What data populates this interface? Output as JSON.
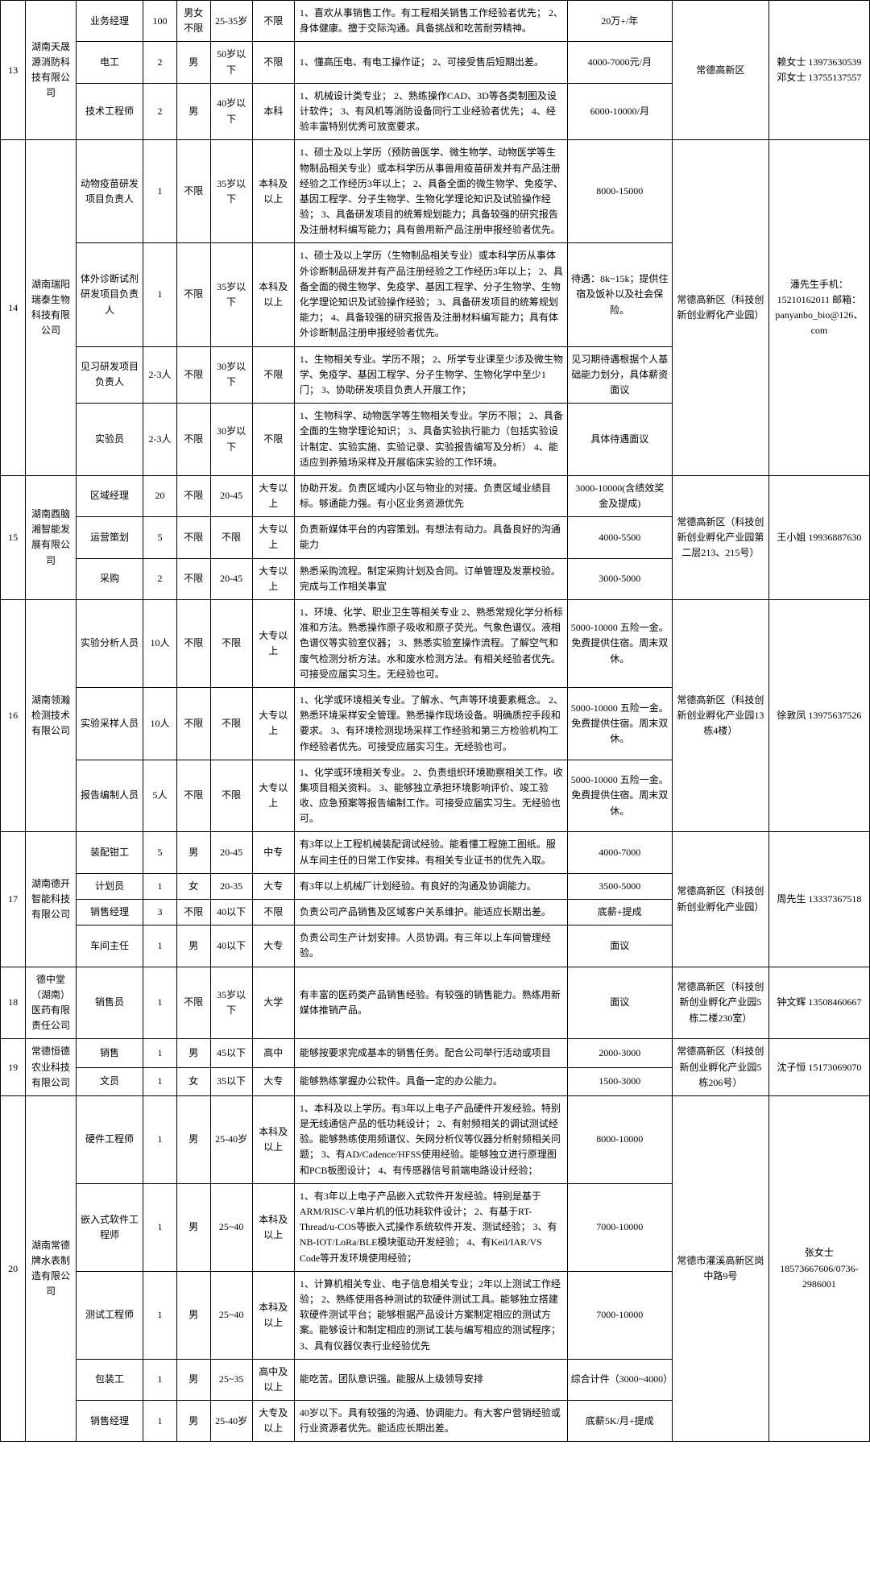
{
  "rows": [
    {
      "i": "13",
      "i_rs": 3,
      "co": "湖南天晟源消防科技有限公司",
      "co_rs": 3,
      "pos": "业务经理",
      "num": "100",
      "sex": "男女不限",
      "age": "25-35岁",
      "edu": "不限",
      "req": "1、喜欢从事销售工作。有工程相关销售工作经验者优先；\n2、身体健康。擅于交际沟通。具备挑战和吃苦耐劳精神。",
      "sal": "20万+/年",
      "loc": "常德高新区",
      "loc_rs": 3,
      "ct": "赖女士\n13973630539\n邓女士\n13755137557",
      "ct_rs": 3
    },
    {
      "pos": "电工",
      "num": "2",
      "sex": "男",
      "age": "50岁以下",
      "edu": "不限",
      "req": "1、懂高压电、有电工操作证；\n2、可接受售后短期出差。",
      "sal": "4000-7000元/月"
    },
    {
      "pos": "技术工程师",
      "num": "2",
      "sex": "男",
      "age": "40岁以下",
      "edu": "本科",
      "req": "1、机械设计类专业；\n2、熟练操作CAD、3D等各类制图及设计软件；\n3、有风机等消防设备同行工业经验者优先；\n4、经验丰富特别优秀可放宽要求。",
      "sal": "6000-10000/月"
    },
    {
      "i": "14",
      "i_rs": 4,
      "co": "湖南瑞阳瑞泰生物科技有限公司",
      "co_rs": 4,
      "pos": "动物疫苗研发项目负责人",
      "num": "1",
      "sex": "不限",
      "age": "35岁以下",
      "edu": "本科及以上",
      "req": "1、硕士及以上学历（预防兽医学、微生物学、动物医学等生物制品相关专业）或本科学历从事兽用疫苗研发并有产品注册经验之工作经历3年以上；\n2、具备全面的微生物学、免疫学、基因工程学、分子生物学、生物化学理论知识及试验操作经验；\n3、具备研发项目的统筹规划能力；具备较强的研究报告及注册材料编写能力；具有兽用新产品注册申报经验者优先。",
      "sal": "8000-15000",
      "loc": "常德高新区（科技创新创业孵化产业园）",
      "loc_rs": 4,
      "ct": "潘先生手机：15210162011\n邮箱：panyanbo_bio@126、com",
      "ct_rs": 4
    },
    {
      "pos": "体外诊断试剂研发项目负责人",
      "num": "1",
      "sex": "不限",
      "age": "35岁以下",
      "edu": "本科及以上",
      "req": "1、硕士及以上学历（生物制品相关专业）或本科学历从事体外诊断制品研发并有产品注册经验之工作经历3年以上；\n2、具备全面的微生物学、免疫学、基因工程学、分子生物学、生物化学理论知识及试验操作经验；\n3、具备研发项目的统筹规划能力；\n4、具备较强的研究报告及注册材料编写能力；具有体外诊断制品注册申报经验者优先。",
      "sal": "待遇：8k~15k；提供住宿及饭补以及社会保险。"
    },
    {
      "pos": "见习研发项目负责人",
      "num": "2-3人",
      "sex": "不限",
      "age": "30岁以下",
      "edu": "不限",
      "req": "1、生物相关专业。学历不限；\n2、所学专业课至少涉及微生物学、免疫学、基因工程学、分子生物学、生物化学中至少1门；\n3、协助研发项目负责人开展工作；",
      "sal": "见习期待遇根据个人基础能力划分，具体薪资面议"
    },
    {
      "pos": "实验员",
      "num": "2-3人",
      "sex": "不限",
      "age": "30岁以下",
      "edu": "不限",
      "req": "1、生物科学、动物医学等生物相关专业。学历不限；\n2、具备全面的生物学理论知识；\n3、具备实验执行能力（包括实验设计制定、实验实施、实验记录、实验报告编写及分析）\n4、能适应到养殖场采样及开展临床实验的工作环境。",
      "sal": "具体待遇面议"
    },
    {
      "i": "15",
      "i_rs": 3,
      "co": "湖南酉脑湘智能发展有限公司",
      "co_rs": 3,
      "pos": "区域经理",
      "num": "20",
      "sex": "不限",
      "age": "20-45",
      "edu": "大专以上",
      "req": "协助开发。负责区域内小区与物业的对接。负责区域业绩目标。够通能力强。有小区业务资源优先",
      "sal": "3000-10000(含绩效奖金及提成)",
      "loc": "常德高新区（科技创新创业孵化产业园第二层213、215号）",
      "loc_rs": 3,
      "ct": "王小姐\n19936887630",
      "ct_rs": 3
    },
    {
      "pos": "运营策划",
      "num": "5",
      "sex": "不限",
      "age": "不限",
      "edu": "大专以上",
      "req": "负责新媒体平台的内容策划。有想法有动力。具备良好的沟通能力",
      "sal": "4000-5500"
    },
    {
      "pos": "采购",
      "num": "2",
      "sex": "不限",
      "age": "20-45",
      "edu": "大专以上",
      "req": "熟悉采购流程。制定采购计划及合同。订单管理及发票校验。完成与工作相关事宜",
      "sal": "3000-5000"
    },
    {
      "i": "16",
      "i_rs": 3,
      "co": "湖南领瀚检测技术有限公司",
      "co_rs": 3,
      "pos": "实验分析人员",
      "num": "10人",
      "sex": "不限",
      "age": "不限",
      "edu": "大专以上",
      "req": "1、环境、化学、职业卫生等相关专业\n2、熟悉常规化学分析标准和方法。熟悉操作原子吸收和原子荧光。气象色谱仪。液相色谱仪等实验室仪器；\n3、熟悉实验室操作流程。了解空气和废气检测分析方法。水和废水检测方法。有相关经验者优先。可接受应届实习生。无经验也可。",
      "sal": "5000-10000\n五险一金。免费提供住宿。周末双休。",
      "loc": "常德高新区（科技创新创业孵化产业园13栋4楼）",
      "loc_rs": 3,
      "ct": "徐敦凤\n13975637526",
      "ct_rs": 3
    },
    {
      "pos": "实验采样人员",
      "num": "10人",
      "sex": "不限",
      "age": "不限",
      "edu": "大专以上",
      "req": "1、化学或环境相关专业。了解水、气声等环境要素概念。\n2、熟悉环境采样安全管理。熟悉操作现场设备。明确质控手段和要求。\n3、有环境检测现场采样工作经验和第三方检验机构工作经验者优先。可接受应届实习生。无经验也可。",
      "sal": "5000-10000\n五险一金。免费提供住宿。周末双休。"
    },
    {
      "pos": "报告编制人员",
      "num": "5人",
      "sex": "不限",
      "age": "不限",
      "edu": "大专以上",
      "req": "1、化学或环境相关专业。\n2、负责组织环境勘察相关工作。收集项目相关资料。\n3、能够独立承担环境影响评价、竣工验收、应急预案等报告编制工作。可接受应届实习生。无经验也可。",
      "sal": "5000-10000\n五险一金。免费提供住宿。周末双休。"
    },
    {
      "i": "17",
      "i_rs": 4,
      "co": "湖南德开智能科技有限公司",
      "co_rs": 4,
      "pos": "装配钳工",
      "num": "5",
      "sex": "男",
      "age": "20-45",
      "edu": "中专",
      "req": "有3年以上工程机械装配调试经验。能看懂工程施工图纸。服从车间主任的日常工作安排。有相关专业证书的优先入取。",
      "sal": "4000-7000",
      "loc": "常德高新区（科技创新创业孵化产业园）",
      "loc_rs": 4,
      "ct": "周先生\n13337367518",
      "ct_rs": 4
    },
    {
      "pos": "计划员",
      "num": "1",
      "sex": "女",
      "age": "20-35",
      "edu": "大专",
      "req": "有3年以上机械厂计划经验。有良好的沟通及协调能力。",
      "sal": "3500-5000"
    },
    {
      "pos": "销售经理",
      "num": "3",
      "sex": "不限",
      "age": "40以下",
      "edu": "不限",
      "req": "负责公司产品销售及区域客户关系维护。能适应长期出差。",
      "sal": "底薪+提成"
    },
    {
      "pos": "车间主任",
      "num": "1",
      "sex": "男",
      "age": "40以下",
      "edu": "大专",
      "req": "负责公司生产计划安排。人员协调。有三年以上车间管理经验。",
      "sal": "面议"
    },
    {
      "i": "18",
      "i_rs": 1,
      "co": "德中堂（湖南）医药有限责任公司",
      "co_rs": 1,
      "pos": "销售员",
      "num": "1",
      "sex": "不限",
      "age": "35岁以下",
      "edu": "大学",
      "req": "有丰富的医药类产品销售经验。有较强的销售能力。熟练用新媒体推销产品。",
      "sal": "面议",
      "loc": "常德高新区（科技创新创业孵化产业园5栋二楼230室）",
      "loc_rs": 1,
      "ct": "钟文辉\n13508460667",
      "ct_rs": 1
    },
    {
      "i": "19",
      "i_rs": 2,
      "co": "常德恒德农业科技有限公司",
      "co_rs": 2,
      "pos": "销售",
      "num": "1",
      "sex": "男",
      "age": "45以下",
      "edu": "高中",
      "req": "能够按要求完成基本的销售任务。配合公司举行活动或项目",
      "sal": "2000-3000",
      "loc": "常德高新区（科技创新创业孵化产业园5栋206号）",
      "loc_rs": 2,
      "ct": "沈子恒\n15173069070",
      "ct_rs": 2
    },
    {
      "pos": "文员",
      "num": "1",
      "sex": "女",
      "age": "35以下",
      "edu": "大专",
      "req": "能够熟练掌握办公软件。具备一定的办公能力。",
      "sal": "1500-3000"
    },
    {
      "i": "20",
      "i_rs": 5,
      "co": "湖南常德牌水表制造有限公司",
      "co_rs": 5,
      "pos": "硬件工程师",
      "num": "1",
      "sex": "男",
      "age": "25-40岁",
      "edu": "本科及以上",
      "req": "1、本科及以上学历。有3年以上电子产品硬件开发经验。特别是无线通信产品的低功耗设计；\n2、有射频相关的调试测试经验。能够熟练使用频谱仪、矢网分析仪等仪器分析射频相关问题；\n3、有AD/Cadence/HFSS使用经验。能够独立进行原理图和PCB板图设计；\n4、有传感器信号前端电路设计经验；",
      "sal": "8000-10000",
      "loc": "常德市灌溪高新区岗中路9号",
      "loc_rs": 5,
      "ct": "张女士\n18573667606/0736-2986001",
      "ct_rs": 5
    },
    {
      "pos": "嵌入式软件工程师",
      "num": "1",
      "sex": "男",
      "age": "25~40",
      "edu": "本科及以上",
      "req": "1、有3年以上电子产品嵌入式软件开发经验。特别是基于ARM/RISC-V单片机的低功耗软件设计；\n2、有基于RT-Thread/u-COS等嵌入式操作系统软件开发、测试经验；\n3、有NB-IOT/LoRa/BLE模块驱动开发经验；\n4、有Keil/IAR/VS Code等开发环境使用经验；",
      "sal": "7000-10000"
    },
    {
      "pos": "测试工程师",
      "num": "1",
      "sex": "男",
      "age": "25~40",
      "edu": "本科及以上",
      "req": "1、计算机相关专业、电子信息相关专业；2年以上测试工作经验；\n2、熟练使用各种测试的软硬件测试工具。能够独立搭建软硬件测试平台；能够根据产品设计方案制定相应的测试方案。能够设计和制定相应的测试工装与编写相应的测试程序；\n3、具有仪器仪表行业经验优先",
      "sal": "7000-10000"
    },
    {
      "pos": "包装工",
      "num": "1",
      "sex": "男",
      "age": "25~35",
      "edu": "高中及以上",
      "req": "能吃苦。团队意识强。能服从上级领导安排",
      "sal": "综合计件（3000~4000）"
    },
    {
      "pos": "销售经理",
      "num": "1",
      "sex": "男",
      "age": "25-40岁",
      "edu": "大专及以上",
      "req": "40岁以下。具有较强的沟通、协调能力。有大客户营销经验或行业资源者优先。能适应长期出差。",
      "sal": "底薪5K/月+提成"
    }
  ]
}
